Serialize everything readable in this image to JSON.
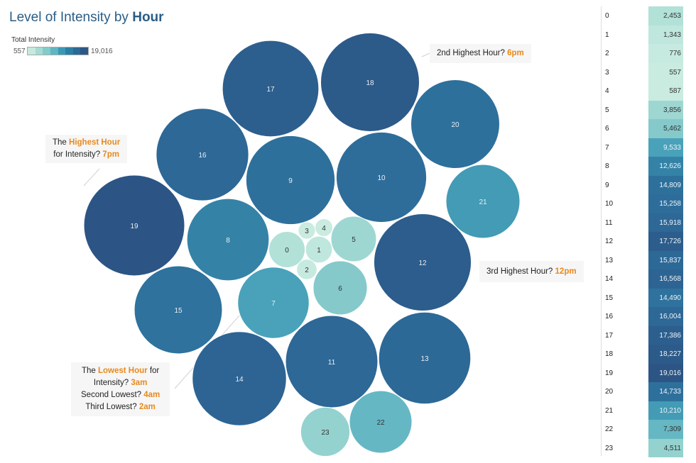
{
  "title": {
    "prefix": "Level of Intensity by ",
    "bold": "Hour"
  },
  "legend": {
    "title": "Total Intensity",
    "min": "557",
    "max": "19,016",
    "colors": [
      "#c7e9df",
      "#a5dbd3",
      "#82cbc9",
      "#5fb6c2",
      "#3b98b5",
      "#2d7ea5",
      "#2c6996",
      "#2c5787"
    ]
  },
  "callouts": {
    "highest": {
      "pre": "The ",
      "hl": "Highest Hour",
      "mid": "for Intensity? ",
      "ans": "7pm"
    },
    "second_highest": {
      "pre": "2nd Highest Hour? ",
      "ans": "6pm"
    },
    "third_highest": {
      "pre": "3rd Highest Hour? ",
      "ans": "12pm"
    },
    "lowest": {
      "pre": "The ",
      "hl": "Lowest Hour",
      "post": " for",
      "l2": "Intensity? ",
      "ans1": "3am",
      "l3": "Second Lowest? ",
      "ans2": "4am",
      "l4": "Third Lowest? ",
      "ans3": "2am"
    }
  },
  "chart_data": {
    "type": "bubble",
    "title": "Level of Intensity by Hour",
    "size_color_measure": "Total Intensity",
    "categories": [
      "0",
      "1",
      "2",
      "3",
      "4",
      "5",
      "6",
      "7",
      "8",
      "9",
      "10",
      "11",
      "12",
      "13",
      "14",
      "15",
      "16",
      "17",
      "18",
      "19",
      "20",
      "21",
      "22",
      "23"
    ],
    "values": [
      2453,
      1343,
      776,
      557,
      587,
      3856,
      5462,
      9533,
      12626,
      14809,
      15258,
      15918,
      17726,
      15837,
      16568,
      14490,
      16004,
      17386,
      18227,
      19016,
      14733,
      10210,
      7309,
      4511
    ],
    "labels": [
      "2,453",
      "1,343",
      "776",
      "557",
      "587",
      "3,856",
      "5,462",
      "9,533",
      "12,626",
      "14,809",
      "15,258",
      "15,918",
      "17,726",
      "15,837",
      "16,568",
      "14,490",
      "16,004",
      "17,386",
      "18,227",
      "19,016",
      "14,733",
      "10,210",
      "7,309",
      "4,511"
    ],
    "color_range": [
      557,
      19016
    ]
  }
}
